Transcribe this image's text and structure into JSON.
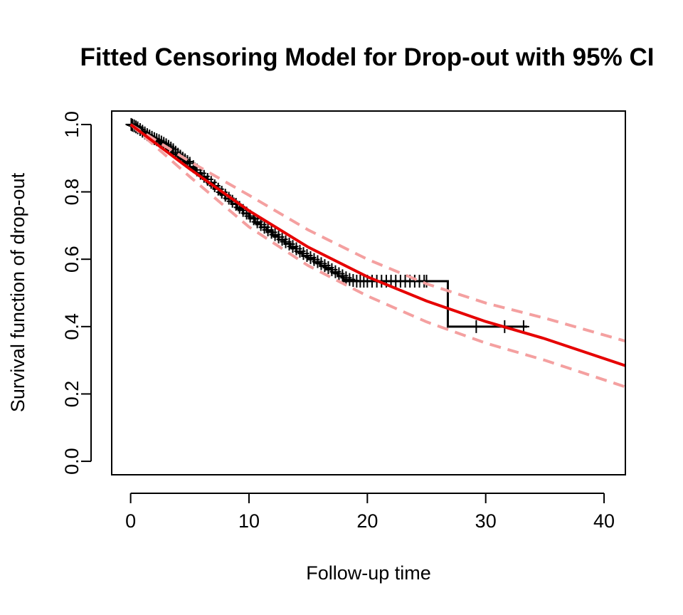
{
  "chart_data": {
    "type": "line",
    "title": "Fitted Censoring Model for Drop-out with 95% CI",
    "xlabel": "Follow-up time",
    "ylabel": "Survival function of drop-out",
    "xlim": [
      -1.6,
      41.8
    ],
    "ylim": [
      -0.04,
      1.04
    ],
    "x_ticks": [
      "0",
      "10",
      "20",
      "30",
      "40"
    ],
    "y_ticks": [
      "0.0",
      "0.2",
      "0.4",
      "0.6",
      "0.8",
      "1.0"
    ],
    "grid": false,
    "legend": "none",
    "series": [
      {
        "role": "kaplan-meier",
        "color": "#000000",
        "style": "step",
        "x": [
          0,
          0.5,
          1,
          1.5,
          2,
          2.5,
          3,
          3.5,
          4,
          4.5,
          5,
          5.5,
          6,
          6.5,
          7,
          7.5,
          8,
          8.5,
          9,
          9.5,
          10,
          10.5,
          11,
          11.5,
          12,
          12.5,
          13,
          13.5,
          14,
          14.5,
          15,
          15.5,
          16,
          16.5,
          17,
          17.5,
          18,
          26.8,
          33.5
        ],
        "y": [
          1.0,
          0.99,
          0.975,
          0.962,
          0.95,
          0.938,
          0.926,
          0.912,
          0.9,
          0.885,
          0.87,
          0.856,
          0.841,
          0.825,
          0.81,
          0.795,
          0.78,
          0.765,
          0.75,
          0.736,
          0.722,
          0.708,
          0.695,
          0.682,
          0.67,
          0.658,
          0.646,
          0.634,
          0.622,
          0.61,
          0.6,
          0.59,
          0.58,
          0.57,
          0.56,
          0.55,
          0.535,
          0.4,
          0.4
        ]
      },
      {
        "role": "fitted",
        "color": "#e60000",
        "style": "solid",
        "x": [
          0,
          5,
          10,
          15,
          20,
          25,
          30,
          35,
          41.8
        ],
        "y": [
          1.0,
          0.868,
          0.744,
          0.636,
          0.548,
          0.476,
          0.415,
          0.364,
          0.284
        ]
      },
      {
        "role": "upper-95ci",
        "color": "#f4a0a0",
        "style": "dashed",
        "x": [
          0,
          5,
          10,
          15,
          20,
          25,
          30,
          35,
          41.8
        ],
        "y": [
          1.0,
          0.89,
          0.79,
          0.687,
          0.6,
          0.527,
          0.47,
          0.425,
          0.357
        ]
      },
      {
        "role": "lower-95ci",
        "color": "#f4a0a0",
        "style": "dashed",
        "x": [
          0,
          5,
          10,
          15,
          20,
          25,
          30,
          35,
          41.8
        ],
        "y": [
          1.0,
          0.845,
          0.696,
          0.581,
          0.491,
          0.414,
          0.351,
          0.3,
          0.221
        ]
      }
    ],
    "censor_marks": {
      "color": "#000000",
      "x": [
        0.05,
        0.15,
        0.3,
        0.45,
        0.6,
        0.8,
        1.0,
        1.2,
        1.4,
        1.6,
        1.8,
        2.0,
        2.2,
        2.4,
        2.6,
        2.8,
        3.0,
        3.2,
        3.4,
        3.6,
        3.8,
        4.0,
        4.2,
        4.4,
        4.6,
        4.8,
        5.0,
        5.3,
        5.6,
        5.9,
        6.2,
        6.5,
        6.8,
        7.1,
        7.4,
        7.7,
        8.0,
        8.3,
        8.6,
        8.9,
        9.2,
        9.5,
        9.8,
        10.1,
        10.4,
        10.7,
        11.0,
        11.3,
        11.6,
        11.9,
        12.2,
        12.5,
        12.8,
        13.1,
        13.4,
        13.7,
        14.0,
        14.3,
        14.6,
        14.9,
        15.2,
        15.5,
        15.8,
        16.1,
        16.4,
        16.7,
        17.0,
        17.3,
        17.6,
        17.9,
        18.2,
        18.5,
        18.8,
        19.1,
        19.4,
        19.7,
        20.0,
        20.4,
        20.8,
        21.2,
        21.6,
        22.0,
        22.4,
        22.8,
        23.2,
        23.6,
        24.0,
        24.4,
        24.8,
        25.0,
        29.2,
        31.6,
        33.2
      ],
      "y": [
        1.0,
        0.998,
        0.996,
        0.993,
        0.99,
        0.985,
        0.98,
        0.975,
        0.97,
        0.966,
        0.962,
        0.958,
        0.955,
        0.952,
        0.948,
        0.944,
        0.94,
        0.935,
        0.93,
        0.925,
        0.918,
        0.912,
        0.906,
        0.9,
        0.895,
        0.89,
        0.885,
        0.875,
        0.865,
        0.855,
        0.846,
        0.837,
        0.828,
        0.818,
        0.808,
        0.799,
        0.79,
        0.781,
        0.772,
        0.763,
        0.754,
        0.745,
        0.737,
        0.728,
        0.72,
        0.711,
        0.703,
        0.695,
        0.687,
        0.68,
        0.673,
        0.666,
        0.659,
        0.652,
        0.645,
        0.638,
        0.631,
        0.624,
        0.617,
        0.611,
        0.605,
        0.599,
        0.593,
        0.587,
        0.581,
        0.575,
        0.569,
        0.563,
        0.557,
        0.551,
        0.545,
        0.54,
        0.537,
        0.535,
        0.535,
        0.535,
        0.535,
        0.535,
        0.535,
        0.535,
        0.535,
        0.535,
        0.535,
        0.535,
        0.535,
        0.535,
        0.535,
        0.535,
        0.535,
        0.535,
        0.4,
        0.4,
        0.4
      ]
    }
  }
}
